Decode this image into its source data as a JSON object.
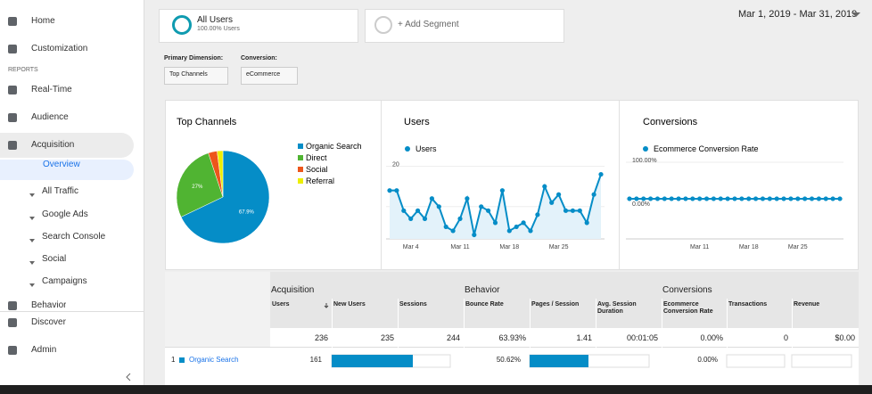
{
  "sidebar": {
    "nav_top": [
      "Home",
      "Customization"
    ],
    "reports_label": "REPORTS",
    "reports": [
      "Real-Time",
      "Audience",
      "Acquisition"
    ],
    "acquisition_sub": [
      "Overview",
      "All Traffic",
      "Google Ads",
      "Search Console",
      "Social",
      "Campaigns"
    ],
    "behavior": "Behavior",
    "nav_bottom": [
      "Discover",
      "Admin"
    ]
  },
  "segments": {
    "all_users": "All Users",
    "all_users_pct": "100.00% Users",
    "add": "+ Add Segment"
  },
  "date_range": "Mar 1, 2019 - Mar 31, 2019",
  "dimensions": {
    "primary_label": "Primary Dimension:",
    "primary_value": "Top Channels",
    "conversion_label": "Conversion:",
    "conversion_value": "eCommerce"
  },
  "chart_data": [
    {
      "type": "pie",
      "title": "Top Channels",
      "categories": [
        "Organic Search",
        "Direct",
        "Social",
        "Referral"
      ],
      "values": [
        67.9,
        27,
        3.1,
        2
      ],
      "value_labels": [
        "67.9%",
        "27%",
        null,
        null
      ],
      "colors": [
        "#058dc7",
        "#50b432",
        "#ed561b",
        "#edef00"
      ]
    },
    {
      "type": "line",
      "title": "Users",
      "categories": [
        null,
        null,
        null,
        "Mar 4",
        null,
        null,
        null,
        null,
        null,
        null,
        "Mar 11",
        null,
        null,
        null,
        null,
        null,
        null,
        "Mar 18",
        null,
        null,
        null,
        null,
        null,
        null,
        "Mar 25",
        null,
        null,
        null,
        null,
        null,
        null
      ],
      "series": [
        {
          "name": "Users",
          "color": "#058dc7",
          "values": [
            14,
            14,
            9,
            7,
            9,
            7,
            12,
            10,
            5,
            4,
            7,
            12,
            3,
            10,
            9,
            6,
            14,
            4,
            5,
            6,
            4,
            8,
            15,
            11,
            13,
            9,
            9,
            9,
            6,
            13,
            18
          ]
        }
      ],
      "ylim": [
        2,
        21
      ],
      "yticks": [
        10,
        20
      ],
      "grid": true,
      "area": true
    },
    {
      "type": "line",
      "title": "Conversions",
      "categories": [
        null,
        null,
        null,
        null,
        null,
        null,
        null,
        null,
        null,
        null,
        "Mar 11",
        null,
        null,
        null,
        null,
        null,
        null,
        "Mar 18",
        null,
        null,
        null,
        null,
        null,
        null,
        "Mar 25",
        null,
        null,
        null,
        null,
        null,
        null
      ],
      "series": [
        {
          "name": "Ecommerce Conversion Rate",
          "color": "#058dc7",
          "values": [
            0,
            0,
            0,
            0,
            0,
            0,
            0,
            0,
            0,
            0,
            0,
            0,
            0,
            0,
            0,
            0,
            0,
            0,
            0,
            0,
            0,
            0,
            0,
            0,
            0,
            0,
            0,
            0,
            0,
            0,
            0
          ]
        }
      ],
      "ylim": [
        -110,
        100
      ],
      "yticks": [
        {
          "value": 100,
          "label": "100.00%"
        },
        {
          "value": 0,
          "label": "0.00%"
        }
      ],
      "grid": true,
      "area": false
    }
  ],
  "table": {
    "groups": [
      "Acquisition",
      "Behavior",
      "Conversions"
    ],
    "columns": [
      "Users",
      "New Users",
      "Sessions",
      "Bounce Rate",
      "Pages / Session",
      "Avg. Session Duration",
      "Ecommerce Conversion Rate",
      "Transactions",
      "Revenue"
    ],
    "totals": [
      "236",
      "235",
      "244",
      "63.93%",
      "1.41",
      "00:01:05",
      "0.00%",
      "0",
      "$0.00"
    ],
    "rows": [
      {
        "rank": "1",
        "channel": "Organic Search",
        "users": "161",
        "bounce_rate": "50.62%",
        "conversion_rate": "0.00%"
      }
    ]
  }
}
